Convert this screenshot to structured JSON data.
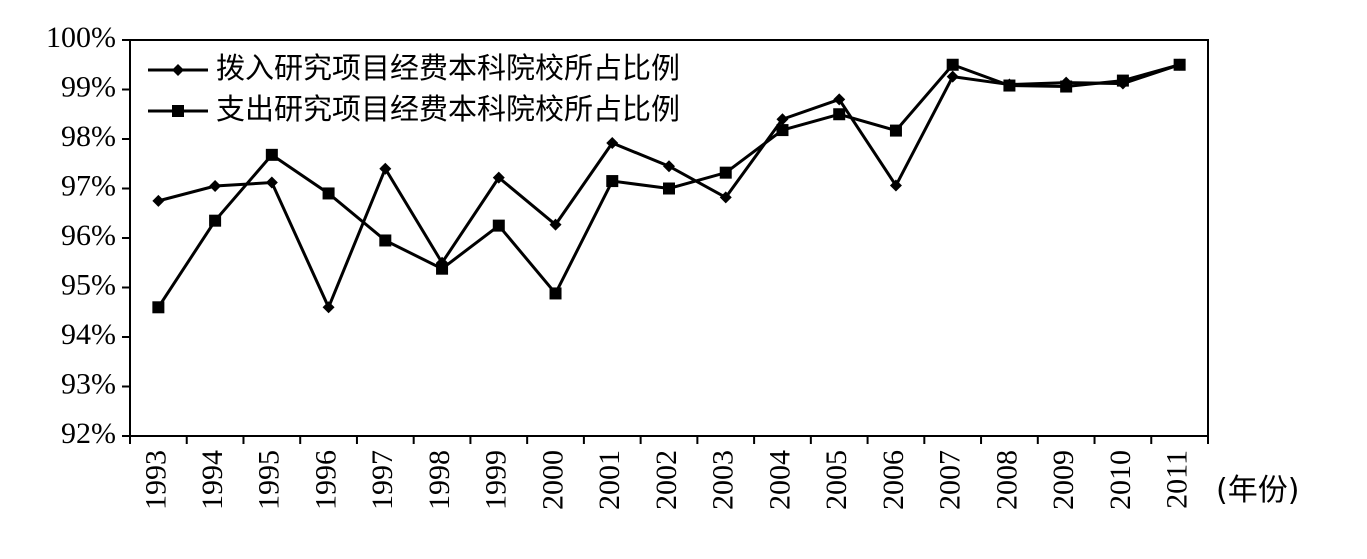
{
  "chart_data": {
    "type": "line",
    "categories": [
      "1993",
      "1994",
      "1995",
      "1996",
      "1997",
      "1998",
      "1999",
      "2000",
      "2001",
      "2002",
      "2003",
      "2004",
      "2005",
      "2006",
      "2007",
      "2008",
      "2009",
      "2010",
      "2011"
    ],
    "xlabel": "(年份)",
    "ylabel": "",
    "ylim": [
      92,
      100
    ],
    "yticks": [
      "92%",
      "93%",
      "94%",
      "95%",
      "96%",
      "97%",
      "98%",
      "99%",
      "100%"
    ],
    "grid": false,
    "legend_position": "top-left",
    "series": [
      {
        "name": "拨入研究项目经费本科院校所占比例",
        "marker": "diamond",
        "values": [
          96.75,
          97.05,
          97.12,
          94.6,
          97.4,
          95.5,
          97.22,
          96.27,
          97.92,
          97.45,
          96.82,
          98.4,
          98.8,
          97.06,
          99.26,
          99.1,
          99.14,
          99.12,
          99.5
        ]
      },
      {
        "name": "支出研究项目经费本科院校所占比例",
        "marker": "square",
        "values": [
          94.6,
          96.35,
          97.68,
          96.9,
          95.95,
          95.38,
          96.25,
          94.88,
          97.15,
          97.0,
          97.32,
          98.18,
          98.5,
          98.17,
          99.5,
          99.08,
          99.06,
          99.18,
          99.5
        ]
      }
    ]
  }
}
